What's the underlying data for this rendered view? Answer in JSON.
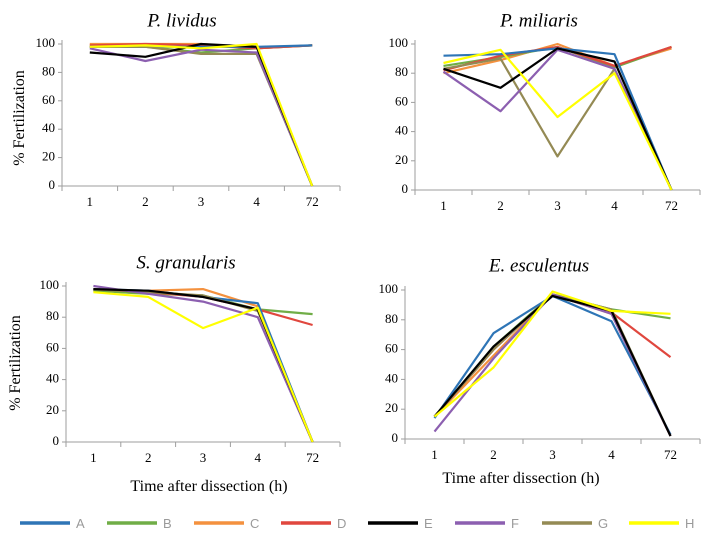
{
  "colors": {
    "A": "#2e75b6",
    "B": "#70ad47",
    "C": "#f4913e",
    "D": "#e0473e",
    "E": "#000000",
    "F": "#8c5fb0",
    "G": "#948a54",
    "H": "#ffff00"
  },
  "legend": {
    "placement": "bottom",
    "entries": [
      "A",
      "B",
      "C",
      "D",
      "E",
      "F",
      "G",
      "H"
    ]
  },
  "chart_data": [
    {
      "type": "line",
      "title": "P. lividus",
      "xlabel": "",
      "ylabel": "% Fertilization",
      "categories": [
        "1",
        "2",
        "3",
        "4",
        "72"
      ],
      "ylim": [
        0,
        100
      ],
      "yticks": [
        "0",
        "20",
        "40",
        "60",
        "80",
        "100"
      ],
      "series": [
        {
          "key": "A",
          "values": [
            98,
            98,
            98,
            98,
            99
          ]
        },
        {
          "key": "B",
          "values": [
            98,
            98,
            94,
            97,
            99
          ]
        },
        {
          "key": "C",
          "values": [
            100,
            100,
            100,
            97,
            99
          ]
        },
        {
          "key": "D",
          "values": [
            99,
            100,
            99,
            97,
            99
          ]
        },
        {
          "key": "E",
          "values": [
            94,
            91,
            100,
            98,
            0
          ]
        },
        {
          "key": "F",
          "values": [
            97,
            88,
            96,
            94,
            0
          ]
        },
        {
          "key": "G",
          "values": [
            98,
            98,
            93,
            93,
            0
          ]
        },
        {
          "key": "H",
          "values": [
            98,
            99,
            97,
            100,
            0
          ]
        }
      ]
    },
    {
      "type": "line",
      "title": "P. miliaris",
      "xlabel": "",
      "ylabel": "",
      "categories": [
        "1",
        "2",
        "3",
        "4",
        "72"
      ],
      "ylim": [
        0,
        100
      ],
      "yticks": [
        "0",
        "20",
        "40",
        "60",
        "80",
        "100"
      ],
      "series": [
        {
          "key": "A",
          "values": [
            92,
            93,
            97,
            93,
            0
          ]
        },
        {
          "key": "B",
          "values": [
            85,
            91,
            98,
            84,
            98
          ]
        },
        {
          "key": "C",
          "values": [
            80,
            89,
            100,
            85,
            97
          ]
        },
        {
          "key": "D",
          "values": [
            82,
            92,
            98,
            85,
            98
          ]
        },
        {
          "key": "E",
          "values": [
            83,
            70,
            97,
            88,
            0
          ]
        },
        {
          "key": "F",
          "values": [
            81,
            54,
            96,
            83,
            0
          ]
        },
        {
          "key": "G",
          "values": [
            83,
            90,
            23,
            83,
            0
          ]
        },
        {
          "key": "H",
          "values": [
            87,
            96,
            50,
            80,
            0
          ]
        }
      ]
    },
    {
      "type": "line",
      "title": "S. granularis",
      "xlabel": "Time after dissection (h)",
      "ylabel": "% Fertilization",
      "categories": [
        "1",
        "2",
        "3",
        "4",
        "72"
      ],
      "ylim": [
        0,
        100
      ],
      "yticks": [
        "0",
        "20",
        "40",
        "60",
        "80",
        "100"
      ],
      "series": [
        {
          "key": "A",
          "values": [
            98,
            97,
            93,
            89,
            0
          ]
        },
        {
          "key": "B",
          "values": [
            97,
            95,
            94,
            85,
            82
          ]
        },
        {
          "key": "C",
          "values": [
            97,
            97,
            98,
            87,
            0
          ]
        },
        {
          "key": "D",
          "values": [
            98,
            96,
            93,
            85,
            75
          ]
        },
        {
          "key": "E",
          "values": [
            98,
            97,
            93,
            85,
            0
          ]
        },
        {
          "key": "F",
          "values": [
            100,
            95,
            90,
            80,
            0
          ]
        },
        {
          "key": "G",
          "values": [
            98,
            96,
            94,
            84,
            0
          ]
        },
        {
          "key": "H",
          "values": [
            96,
            93,
            73,
            86,
            0
          ]
        }
      ]
    },
    {
      "type": "line",
      "title": "E. esculentus",
      "xlabel": "Time after dissection (h)",
      "ylabel": "",
      "categories": [
        "1",
        "2",
        "3",
        "4",
        "72"
      ],
      "ylim": [
        0,
        100
      ],
      "yticks": [
        "0",
        "20",
        "40",
        "60",
        "80",
        "100"
      ],
      "series": [
        {
          "key": "A",
          "values": [
            14,
            71,
            96,
            79,
            3
          ]
        },
        {
          "key": "B",
          "values": [
            15,
            62,
            97,
            87,
            81
          ]
        },
        {
          "key": "C",
          "values": [
            15,
            56,
            97,
            84,
            2
          ]
        },
        {
          "key": "D",
          "values": [
            15,
            60,
            97,
            85,
            55
          ]
        },
        {
          "key": "E",
          "values": [
            15,
            62,
            96,
            86,
            2
          ]
        },
        {
          "key": "F",
          "values": [
            5,
            54,
            97,
            84,
            2
          ]
        },
        {
          "key": "G",
          "values": [
            15,
            60,
            97,
            87,
            2
          ]
        },
        {
          "key": "H",
          "values": [
            15,
            48,
            99,
            86,
            84
          ]
        }
      ]
    }
  ]
}
